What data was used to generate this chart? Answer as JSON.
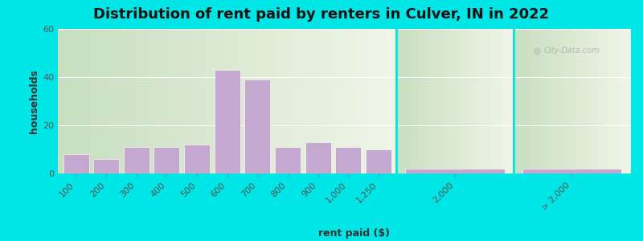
{
  "title": "Distribution of rent paid by renters in Culver, IN in 2022",
  "xlabel": "rent paid ($)",
  "ylabel": "households",
  "background_color": "#00e5e5",
  "bar_color": "#c4a8d0",
  "bar_edge_color": "#ffffff",
  "ylim": [
    0,
    60
  ],
  "yticks": [
    0,
    20,
    40,
    60
  ],
  "categories_left": [
    "100",
    "200",
    "300",
    "400",
    "500",
    "600",
    "700",
    "800",
    "900",
    "1,000",
    "1,250"
  ],
  "values_left": [
    8,
    6,
    11,
    11,
    12,
    43,
    39,
    11,
    13,
    11,
    10
  ],
  "categories_mid": [
    "2,000"
  ],
  "values_mid": [
    2
  ],
  "categories_right": [
    "> 2,000"
  ],
  "values_right": [
    2
  ],
  "title_fontsize": 13,
  "axis_label_fontsize": 9,
  "tick_fontsize": 8,
  "watermark": "City-Data.com",
  "grad_left": "#c8dfc0",
  "grad_right": "#f0f5e8"
}
